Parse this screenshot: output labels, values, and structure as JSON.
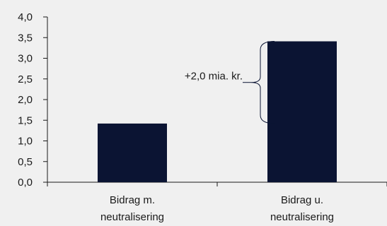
{
  "chart_data": {
    "type": "bar",
    "categories": [
      [
        "Bidrag m.",
        "neutralisering"
      ],
      [
        "Bidrag u.",
        "neutralisering"
      ]
    ],
    "values": [
      1.42,
      3.41
    ],
    "ylim": [
      0,
      4.0
    ],
    "yticks": [
      "0,0",
      "0,5",
      "1,0",
      "1,5",
      "2,0",
      "2,5",
      "3,0",
      "3,5",
      "4,0"
    ],
    "bar_color": "#0b1433",
    "annotation": "+2,0 mia. kr.",
    "grid": false,
    "legend": "none"
  }
}
